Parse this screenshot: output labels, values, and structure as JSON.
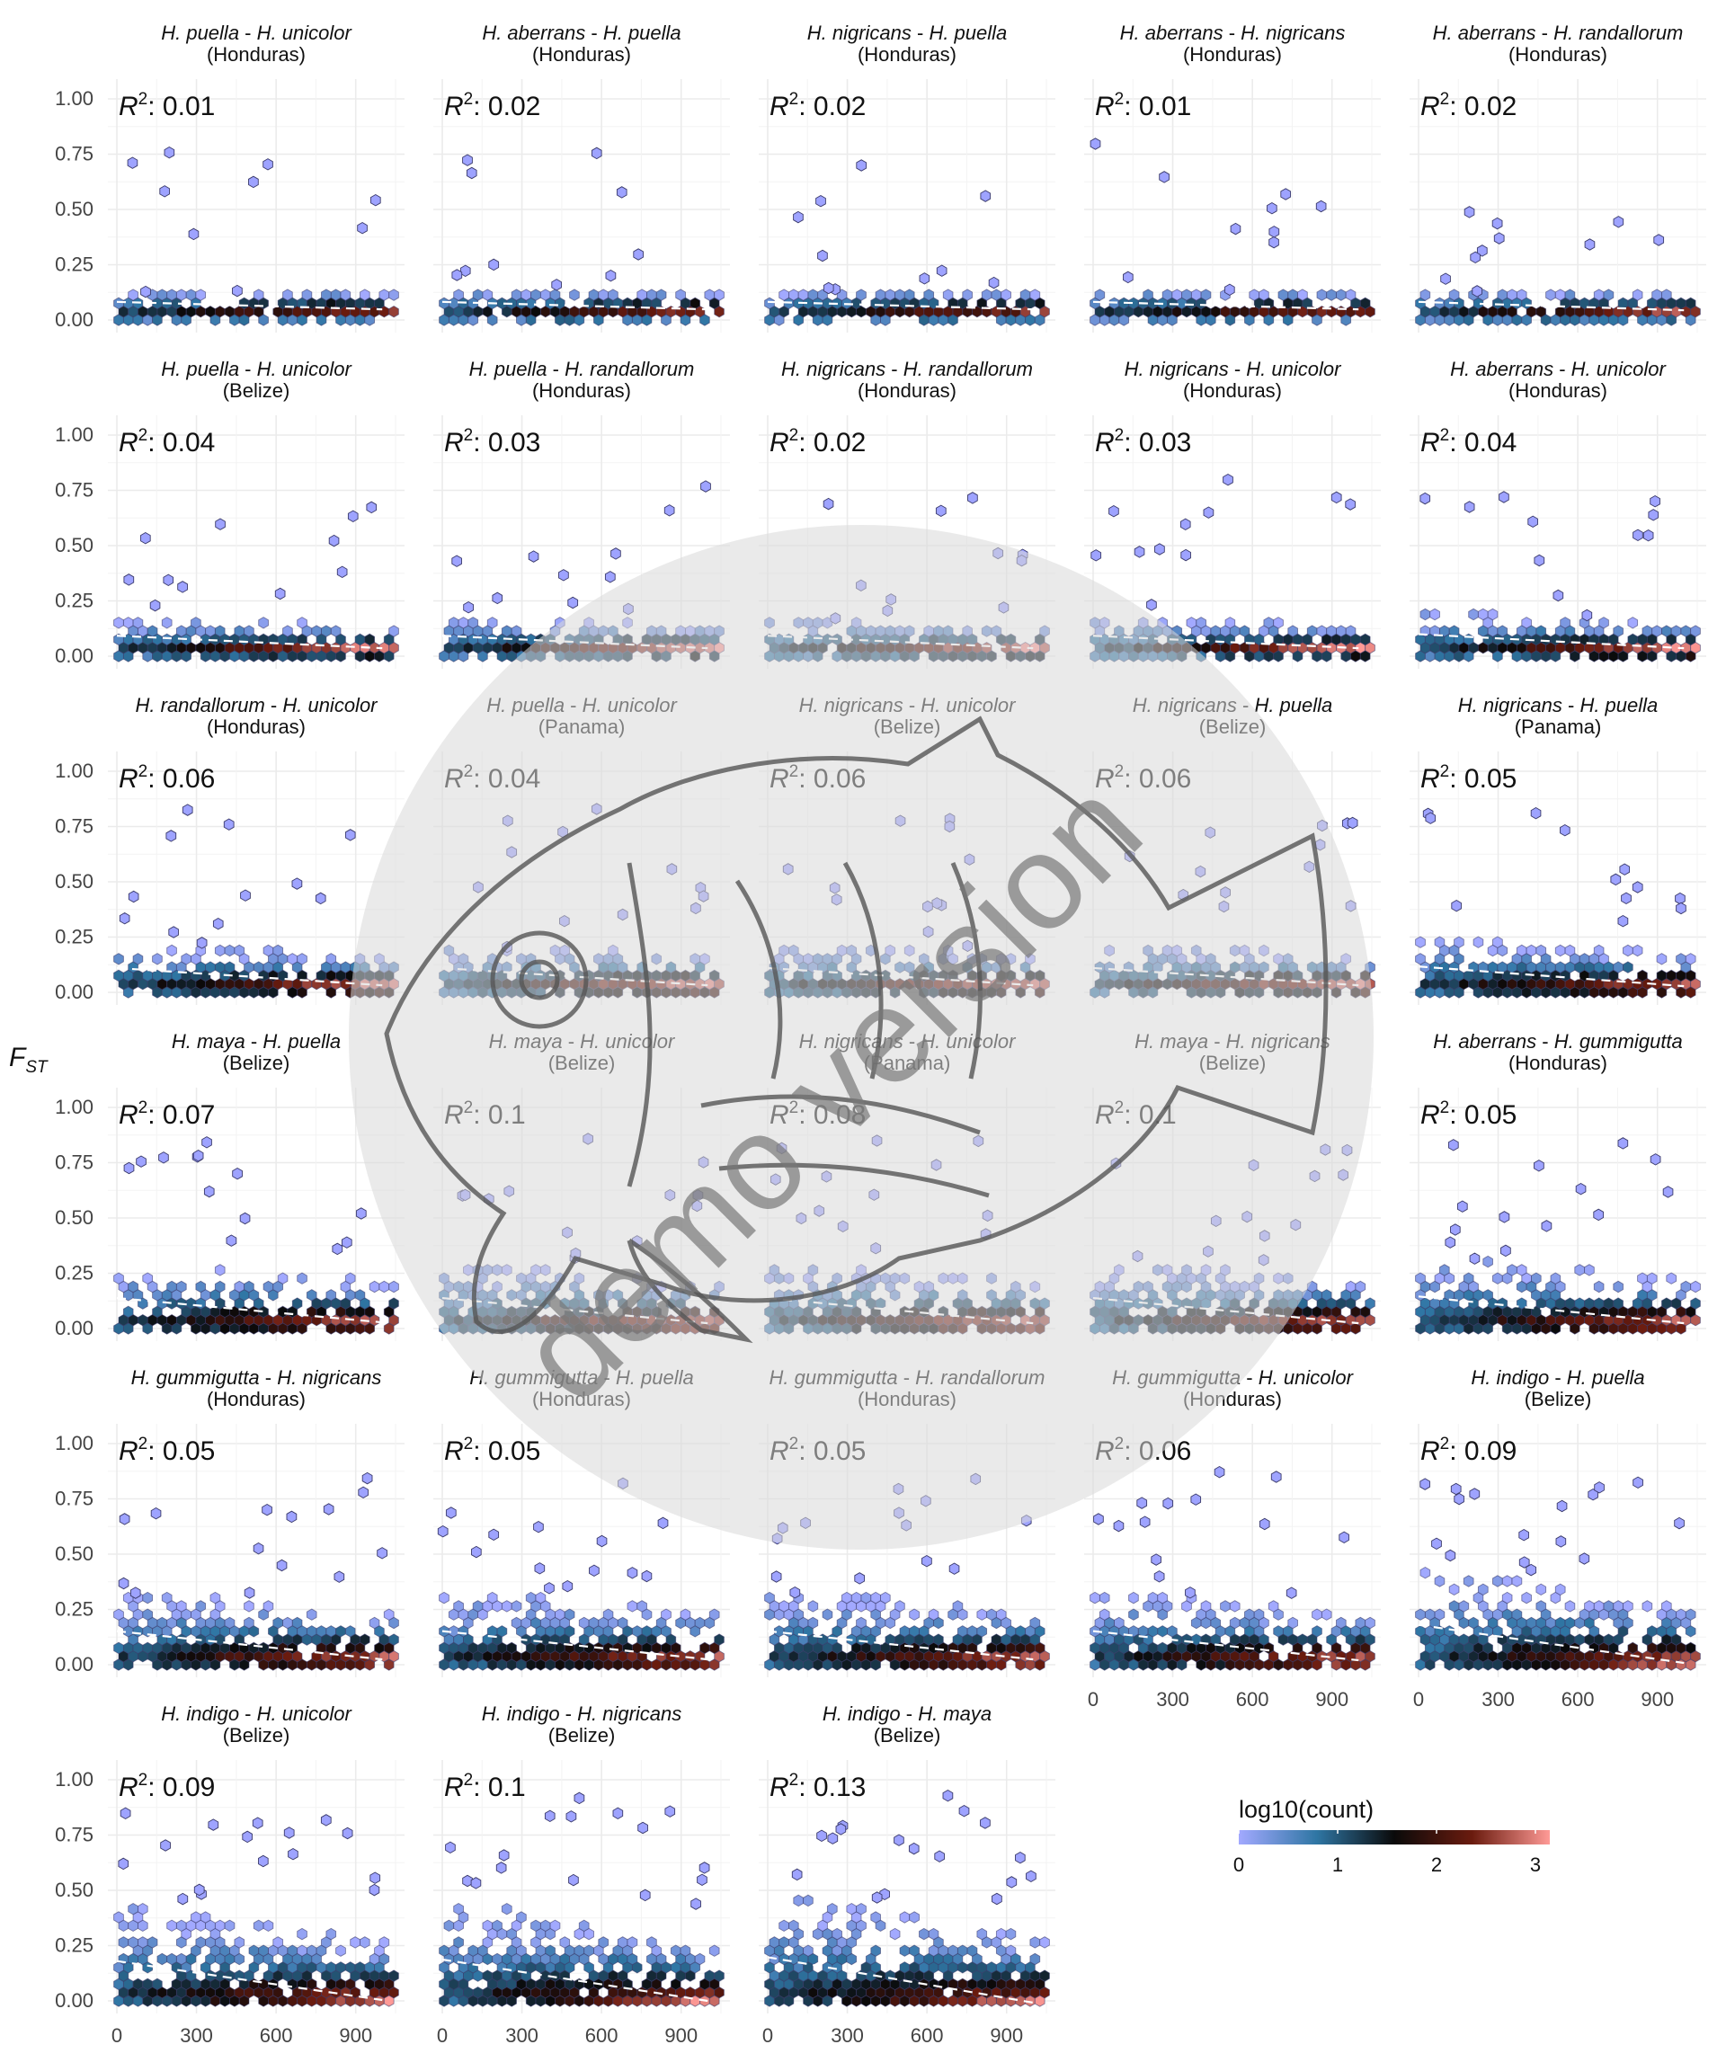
{
  "figure": {
    "y_axis_title_main": "F",
    "y_axis_title_sub": "ST",
    "r2_label_main": "R",
    "r2_label_sup": "2",
    "r2_label_sep": ":",
    "watermark_text": "demo version",
    "watermark_icon": "fish-sketch-icon"
  },
  "legend": {
    "title": "log10(count)",
    "ticks": [
      "0",
      "1",
      "2",
      "3"
    ],
    "colors": [
      "#a2a9ff",
      "#2f76a4",
      "#0a0a0a",
      "#6a1b0e",
      "#ff9a96"
    ]
  },
  "chart_data": {
    "type": "heatmap",
    "subtype": "hexbin",
    "ylim": [
      0,
      1.0
    ],
    "xlim": [
      0,
      1050
    ],
    "y_ticks": [
      "0.00",
      "0.25",
      "0.50",
      "0.75",
      "1.00"
    ],
    "x_ticks": [
      "0",
      "300",
      "600",
      "900"
    ],
    "grid": true,
    "legend_position": "bottom-right",
    "panels": [
      {
        "sp1": "H. puella",
        "sp2": "H. unicolor",
        "region": "(Honduras)",
        "r2": "0.01",
        "slope": 2e-05,
        "spread": 0.12
      },
      {
        "sp1": "H. aberrans",
        "sp2": "H. puella",
        "region": "(Honduras)",
        "r2": "0.02",
        "slope": 2e-05,
        "spread": 0.12
      },
      {
        "sp1": "H. nigricans",
        "sp2": "H. puella",
        "region": "(Honduras)",
        "r2": "0.02",
        "slope": 2e-05,
        "spread": 0.12
      },
      {
        "sp1": "H. aberrans",
        "sp2": "H. nigricans",
        "region": "(Honduras)",
        "r2": "0.01",
        "slope": 2e-05,
        "spread": 0.12
      },
      {
        "sp1": "H. aberrans",
        "sp2": "H. randallorum",
        "region": "(Honduras)",
        "r2": "0.02",
        "slope": 1e-05,
        "spread": 0.12
      },
      {
        "sp1": "H. puella",
        "sp2": "H. unicolor",
        "region": "(Belize)",
        "r2": "0.04",
        "slope": -1e-05,
        "spread": 0.15
      },
      {
        "sp1": "H. puella",
        "sp2": "H. randallorum",
        "region": "(Honduras)",
        "r2": "0.03",
        "slope": -1e-05,
        "spread": 0.15
      },
      {
        "sp1": "H. nigricans",
        "sp2": "H. randallorum",
        "region": "(Honduras)",
        "r2": "0.02",
        "slope": -1e-05,
        "spread": 0.15
      },
      {
        "sp1": "H. nigricans",
        "sp2": "H. unicolor",
        "region": "(Honduras)",
        "r2": "0.03",
        "slope": -1e-05,
        "spread": 0.15
      },
      {
        "sp1": "H. aberrans",
        "sp2": "H. unicolor",
        "region": "(Honduras)",
        "r2": "0.04",
        "slope": -1e-05,
        "spread": 0.17
      },
      {
        "sp1": "H. randallorum",
        "sp2": "H. unicolor",
        "region": "(Honduras)",
        "r2": "0.06",
        "slope": -2e-05,
        "spread": 0.2
      },
      {
        "sp1": "H. puella",
        "sp2": "H. unicolor",
        "region": "(Panama)",
        "r2": "0.04",
        "slope": -2e-05,
        "spread": 0.2
      },
      {
        "sp1": "H. nigricans",
        "sp2": "H. unicolor",
        "region": "(Belize)",
        "r2": "0.06",
        "slope": -2e-05,
        "spread": 0.2
      },
      {
        "sp1": "H. nigricans",
        "sp2": "H. puella",
        "region": "(Belize)",
        "r2": "0.06",
        "slope": -2e-05,
        "spread": 0.2
      },
      {
        "sp1": "H. nigricans",
        "sp2": "H. puella",
        "region": "(Panama)",
        "r2": "0.05",
        "slope": -3e-05,
        "spread": 0.22
      },
      {
        "sp1": "H. maya",
        "sp2": "H. puella",
        "region": "(Belize)",
        "r2": "0.07",
        "slope": -3e-05,
        "spread": 0.28
      },
      {
        "sp1": "H. maya",
        "sp2": "H. unicolor",
        "region": "(Belize)",
        "r2": "0.1",
        "slope": -4e-05,
        "spread": 0.28
      },
      {
        "sp1": "H. nigricans",
        "sp2": "H. unicolor",
        "region": "(Panama)",
        "r2": "0.08",
        "slope": -4e-05,
        "spread": 0.28
      },
      {
        "sp1": "H. maya",
        "sp2": "H. nigricans",
        "region": "(Belize)",
        "r2": "0.1",
        "slope": -4e-05,
        "spread": 0.28
      },
      {
        "sp1": "H. aberrans",
        "sp2": "H. gummigutta",
        "region": "(Honduras)",
        "r2": "0.05",
        "slope": -4e-05,
        "spread": 0.3
      },
      {
        "sp1": "H. gummigutta",
        "sp2": "H. nigricans",
        "region": "(Honduras)",
        "r2": "0.05",
        "slope": -4e-05,
        "spread": 0.32
      },
      {
        "sp1": "H. gummigutta",
        "sp2": "H. puella",
        "region": "(Honduras)",
        "r2": "0.05",
        "slope": -4e-05,
        "spread": 0.32
      },
      {
        "sp1": "H. gummigutta",
        "sp2": "H. randallorum",
        "region": "(Honduras)",
        "r2": "0.05",
        "slope": -4e-05,
        "spread": 0.32
      },
      {
        "sp1": "H. gummigutta",
        "sp2": "H. unicolor",
        "region": "(Honduras)",
        "r2": "0.06",
        "slope": -5e-05,
        "spread": 0.32
      },
      {
        "sp1": "H. indigo",
        "sp2": "H. puella",
        "region": "(Belize)",
        "r2": "0.09",
        "slope": -8e-05,
        "spread": 0.4
      },
      {
        "sp1": "H. indigo",
        "sp2": "H. unicolor",
        "region": "(Belize)",
        "r2": "0.09",
        "slope": -9e-05,
        "spread": 0.4
      },
      {
        "sp1": "H. indigo",
        "sp2": "H. nigricans",
        "region": "(Belize)",
        "r2": "0.1",
        "slope": -0.0001,
        "spread": 0.42
      },
      {
        "sp1": "H. indigo",
        "sp2": "H. maya",
        "region": "(Belize)",
        "r2": "0.13",
        "slope": -0.00012,
        "spread": 0.45
      }
    ]
  }
}
